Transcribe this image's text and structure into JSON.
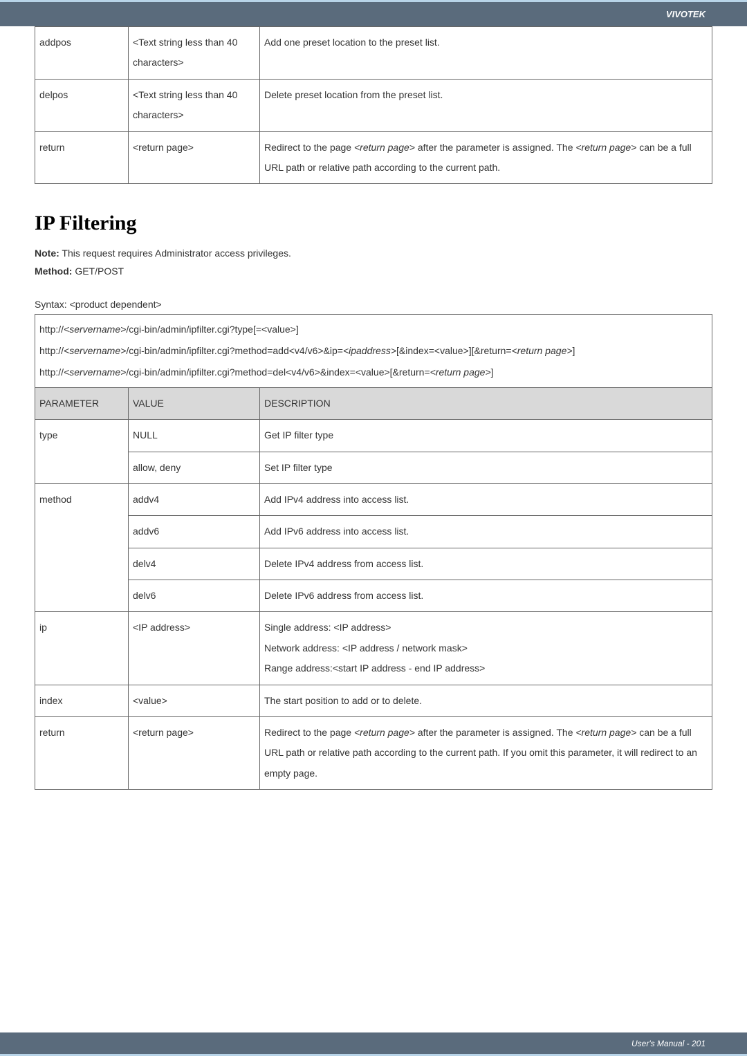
{
  "header": {
    "brand": "VIVOTEK"
  },
  "footer": {
    "text": "User's Manual - 201"
  },
  "table1": {
    "rows": [
      {
        "param": "addpos",
        "value": "<Text string less than 40 characters>",
        "desc": "Add one preset location to the preset list."
      },
      {
        "param": "delpos",
        "value": "<Text string less than 40 characters>",
        "desc": "Delete preset location from the preset list."
      },
      {
        "param": "return",
        "value": "<return page>",
        "desc_html": "Redirect to the page <em>&lt;return page&gt;</em> after the parameter is assigned. The <em>&lt;return page&gt;</em> can be a full URL path or relative path according to the current path."
      }
    ]
  },
  "section": {
    "title": "IP Filtering",
    "note_label": "Note:",
    "note_text": " This request requires Administrator access privileges.",
    "method_label": "Method:",
    "method_text": " GET/POST",
    "syntax_label": "Syntax: <product dependent>",
    "syntax_lines_html": "http://<em>&lt;servername&gt;</em>/cgi-bin/admin/ipfilter.cgi?type[=&lt;value&gt;]<br>http://<em>&lt;servername&gt;</em>/cgi-bin/admin/ipfilter.cgi?method=add&lt;v4/v6&gt;&amp;ip=<em>&lt;ipaddress&gt;</em>[&amp;index=&lt;value&gt;][&amp;return=<em>&lt;return page&gt;</em>]<br>http://<em>&lt;servername&gt;</em>/cgi-bin/admin/ipfilter.cgi?method=del&lt;v4/v6&gt;&amp;index=&lt;value&gt;[&amp;return=<em>&lt;return page&gt;</em>]"
  },
  "table2": {
    "headers": {
      "param": "PARAMETER",
      "value": "VALUE",
      "desc": "DESCRIPTION"
    },
    "rows": [
      {
        "param": "type",
        "value": "NULL",
        "desc": "Get IP filter type",
        "rowspan_param": 2
      },
      {
        "value": "allow, deny",
        "desc": "Set IP filter type"
      },
      {
        "param": "method",
        "value": "addv4",
        "desc": "Add IPv4 address into access list.",
        "rowspan_param": 4
      },
      {
        "value": "addv6",
        "desc": "Add IPv6 address into access list."
      },
      {
        "value": "delv4",
        "desc": "Delete IPv4 address from access list."
      },
      {
        "value": "delv6",
        "desc": "Delete IPv6 address from access list."
      },
      {
        "param": "ip",
        "value": "<IP address>",
        "desc_html": "Single address: &lt;IP address&gt;<br>Network address: &lt;IP address / network mask&gt;<br>Range address:&lt;start IP address - end IP address&gt;"
      },
      {
        "param": "index",
        "value": "<value>",
        "desc": "The start position to add or to delete."
      },
      {
        "param": "return",
        "value": "<return page>",
        "desc_html": "Redirect to the page <em>&lt;return page&gt;</em> after the parameter is assigned. The <em>&lt;return page&gt;</em> can be a full URL path or relative path according to the current path. If you omit this parameter, it will redirect to an empty page."
      }
    ]
  }
}
